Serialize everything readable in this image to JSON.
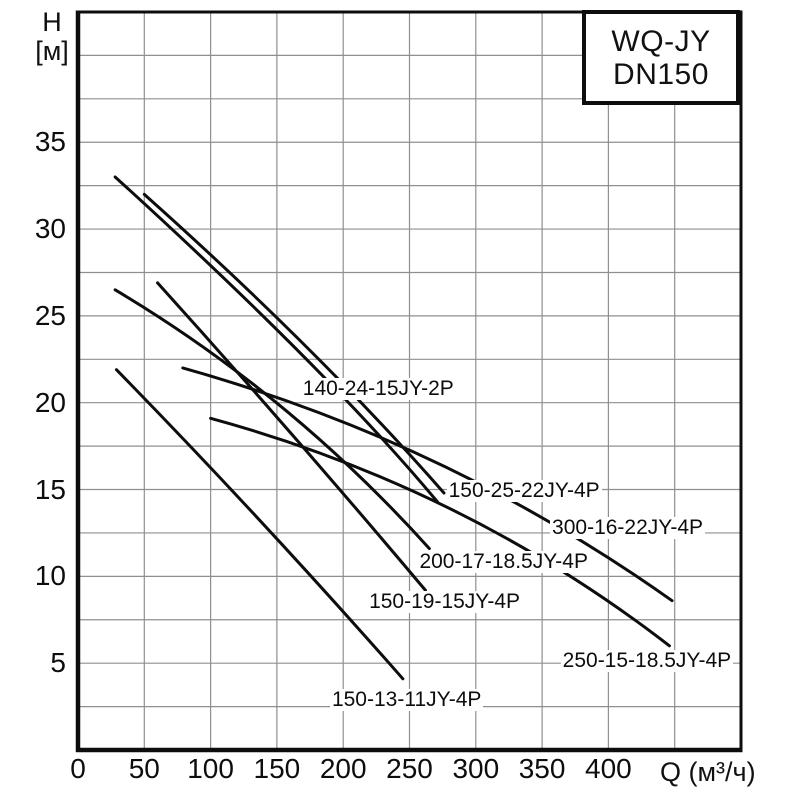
{
  "title": {
    "line1": "WQ-JY",
    "line2": "DN150"
  },
  "axes": {
    "y_label": "H",
    "y_unit": "[м]",
    "x_label": "Q (м³/ч)",
    "x_ticks": [
      0,
      50,
      100,
      150,
      200,
      250,
      300,
      350,
      400
    ],
    "y_ticks": [
      5,
      10,
      15,
      20,
      25,
      30,
      35
    ],
    "x_grid_step": 50,
    "y_grid_step": 2.5,
    "x_range": [
      0,
      500
    ],
    "y_range": [
      0,
      42.5
    ],
    "grid": "on"
  },
  "chart_data": {
    "type": "line",
    "title": "WQ-JY DN150 submersible pump performance curves",
    "xlabel": "Q (м³/ч)",
    "ylabel": "H [м]",
    "xlim": [
      0,
      500
    ],
    "ylim": [
      0,
      42.5
    ],
    "grid": "on",
    "legend_position": "labels-on-curves",
    "series": [
      {
        "name": "140-24-15JY-2P",
        "bezier": [
          [
            28,
            33.0
          ],
          [
            188,
            21.9
          ],
          [
            271,
            14.3
          ]
        ],
        "label_pos": [
          168,
          20.8
        ]
      },
      {
        "name": "150-25-22JY-4P",
        "bezier": [
          [
            50,
            32.0
          ],
          [
            182,
            23.0
          ],
          [
            276,
            14.8
          ]
        ],
        "label_pos": [
          278,
          14.9
        ]
      },
      {
        "name": "200-17-18.5JY-4P",
        "bezier": [
          [
            28,
            26.5
          ],
          [
            160,
            20.5
          ],
          [
            265,
            11.6
          ]
        ],
        "label_pos": [
          256,
          10.8
        ]
      },
      {
        "name": "150-19-15JY-4P",
        "bezier": [
          [
            60,
            26.9
          ],
          [
            164,
            18.1
          ],
          [
            262,
            9.2
          ]
        ],
        "label_pos": [
          218,
          8.5
        ]
      },
      {
        "name": "150-13-11JY-4P",
        "bezier": [
          [
            29,
            21.9
          ],
          [
            139,
            13.3
          ],
          [
            245,
            4.1
          ]
        ],
        "label_pos": [
          190,
          2.9
        ]
      },
      {
        "name": "300-16-22JY-4P",
        "bezier": [
          [
            79,
            22.0
          ],
          [
            280,
            17.7
          ],
          [
            448,
            8.6
          ]
        ],
        "label_pos": [
          356,
          12.8
        ]
      },
      {
        "name": "250-15-18.5JY-4P",
        "bezier": [
          [
            100,
            19.1
          ],
          [
            292,
            15.1
          ],
          [
            446,
            6.0
          ]
        ],
        "label_pos": [
          364,
          5.1
        ]
      }
    ]
  }
}
